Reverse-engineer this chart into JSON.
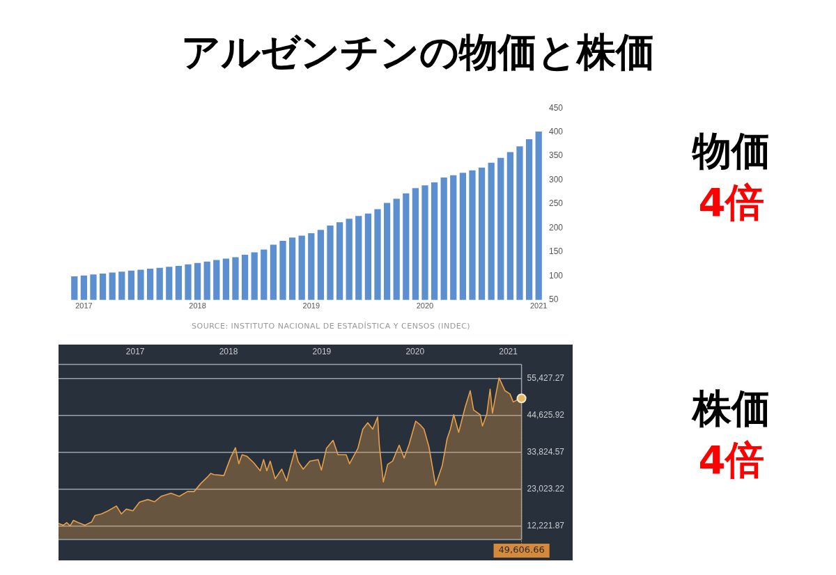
{
  "chart_data": [
    {
      "type": "bar",
      "title": "アルゼンチンの物価と株価",
      "categories": [
        null,
        "2017",
        null,
        null,
        null,
        null,
        null,
        null,
        null,
        null,
        null,
        null,
        null,
        "2018",
        null,
        null,
        null,
        null,
        null,
        null,
        null,
        null,
        null,
        null,
        null,
        "2019",
        null,
        null,
        null,
        null,
        null,
        null,
        null,
        null,
        null,
        null,
        null,
        "2020",
        null,
        null,
        null,
        null,
        null,
        null,
        null,
        null,
        null,
        null,
        null,
        "2021"
      ],
      "values": [
        99,
        101,
        103,
        105,
        107,
        109,
        111,
        113,
        115,
        117,
        119,
        121,
        124,
        127,
        130,
        133,
        136,
        139,
        144,
        149,
        155,
        165,
        173,
        180,
        184,
        189,
        196,
        205,
        212,
        219,
        225,
        230,
        239,
        252,
        261,
        272,
        283,
        289,
        295,
        305,
        310,
        315,
        320,
        326,
        336,
        346,
        358,
        370,
        385,
        401
      ],
      "color": "#5b8fd0",
      "ylim": [
        50,
        450
      ],
      "yticks": [
        50,
        100,
        150,
        200,
        250,
        300,
        350,
        400,
        450
      ],
      "grid": false,
      "legend": false,
      "annotations": [
        "物価",
        "4倍",
        "SOURCE: INSTITUTO NACIONAL DE ESTADÍSTICA Y CENSOS (INDEC)"
      ]
    },
    {
      "type": "area",
      "x": [
        2016.177,
        2016.23,
        2016.266,
        2016.301,
        2016.337,
        2016.39,
        2016.461,
        2016.532,
        2016.567,
        2016.638,
        2016.709,
        2016.798,
        2016.851,
        2016.904,
        2016.975,
        2017.046,
        2017.135,
        2017.206,
        2017.277,
        2017.383,
        2017.472,
        2017.56,
        2017.631,
        2017.702,
        2017.773,
        2017.809,
        2017.844,
        2017.95,
        2018.021,
        2018.074,
        2018.11,
        2018.145,
        2018.199,
        2018.27,
        2018.34,
        2018.376,
        2018.411,
        2018.447,
        2018.5,
        2018.571,
        2018.624,
        2018.66,
        2018.713,
        2018.748,
        2018.801,
        2018.872,
        2018.961,
        2018.996,
        2019.05,
        2019.121,
        2019.174,
        2019.262,
        2019.298,
        2019.387,
        2019.44,
        2019.493,
        2019.546,
        2019.599,
        2019.617,
        2019.66,
        2019.706,
        2019.759,
        2019.83,
        2019.883,
        2019.936,
        2020.007,
        2020.06,
        2020.096,
        2020.149,
        2020.22,
        2020.291,
        2020.344,
        2020.379,
        2020.415,
        2020.468,
        2020.539,
        2020.592,
        2020.628,
        2020.699,
        2020.723,
        2020.77,
        2020.805,
        2020.83,
        2020.858,
        2020.901,
        2020.965,
        2021.018,
        2021.053,
        2021.089,
        2021.117,
        2021.142
      ],
      "values": [
        12880,
        12410,
        13160,
        12220,
        13820,
        13160,
        12410,
        13350,
        15230,
        15700,
        16640,
        18040,
        15700,
        17110,
        16640,
        19170,
        19920,
        19270,
        20860,
        21800,
        20860,
        22270,
        22270,
        24620,
        26500,
        27620,
        27250,
        26970,
        32130,
        35140,
        30440,
        33070,
        32600,
        30720,
        28380,
        31660,
        28380,
        31200,
        26030,
        28840,
        25370,
        29320,
        34480,
        31010,
        28840,
        31200,
        31660,
        28560,
        34950,
        37300,
        33070,
        33070,
        30440,
        34950,
        40580,
        42460,
        40580,
        44150,
        35890,
        25090,
        30250,
        31200,
        35890,
        32130,
        36080,
        42930,
        41710,
        40580,
        35420,
        24150,
        29790,
        37770,
        40580,
        44810,
        39650,
        47160,
        51860,
        46220,
        44810,
        41520,
        45090,
        52330,
        45280,
        49510,
        55610,
        51860,
        50920,
        48570,
        49040,
        50730,
        49606.66
      ],
      "color": "#e8a04a",
      "marker": "none",
      "grid": "y",
      "legend": false,
      "xlim": [
        2016.177,
        2021.142
      ],
      "xticks": [
        2017,
        2018,
        2019,
        2020,
        2021
      ],
      "ylim": [
        8200,
        59600
      ],
      "yticks": [
        {
          "value": 12221.87,
          "label": "12,221.87"
        },
        {
          "value": 23023.22,
          "label": "23,023.22"
        },
        {
          "value": 33824.57,
          "label": "33,824.57"
        },
        {
          "value": 44625.92,
          "label": "44,625.92"
        },
        {
          "value": 55427.27,
          "label": "55,427.27"
        }
      ],
      "annotations": [
        "株価",
        "4倍",
        "49,606.66"
      ]
    }
  ]
}
